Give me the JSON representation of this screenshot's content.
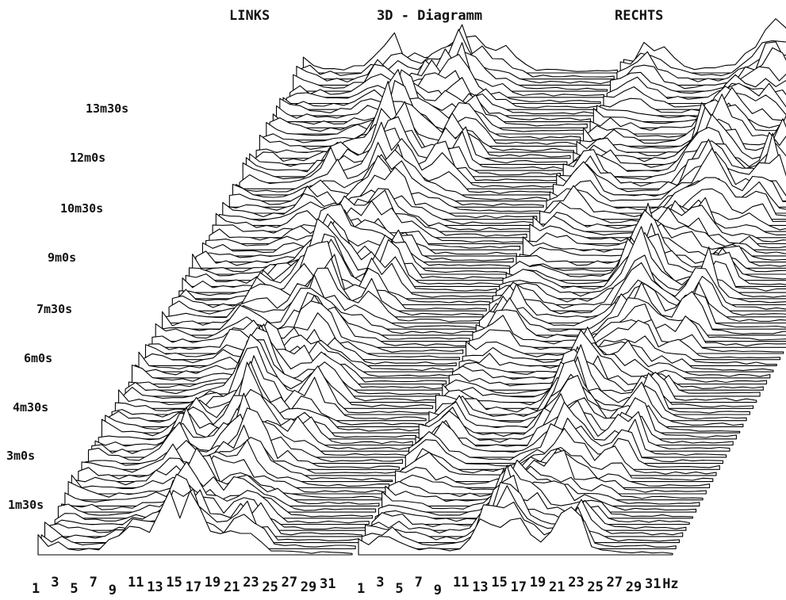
{
  "header": {
    "left": "LINKS",
    "center": "3D - Diagramm",
    "right": "RECHTS"
  },
  "chart_data": {
    "type": "waterfall",
    "panels": [
      "LINKS",
      "RECHTS"
    ],
    "time_labels": [
      "1m30s",
      "3m0s",
      "4m30s",
      "6m0s",
      "7m30s",
      "9m0s",
      "10m30s",
      "12m0s",
      "13m30s"
    ],
    "frequency_ticks": [
      "1",
      "3",
      "5",
      "7",
      "9",
      "11",
      "13",
      "15",
      "17",
      "19",
      "21",
      "23",
      "25",
      "27",
      "29",
      "31"
    ],
    "frequency_unit": "Hz",
    "num_traces": 80,
    "num_bins": 32,
    "colors": {
      "line": "#000000",
      "background": "#ffffff"
    }
  }
}
